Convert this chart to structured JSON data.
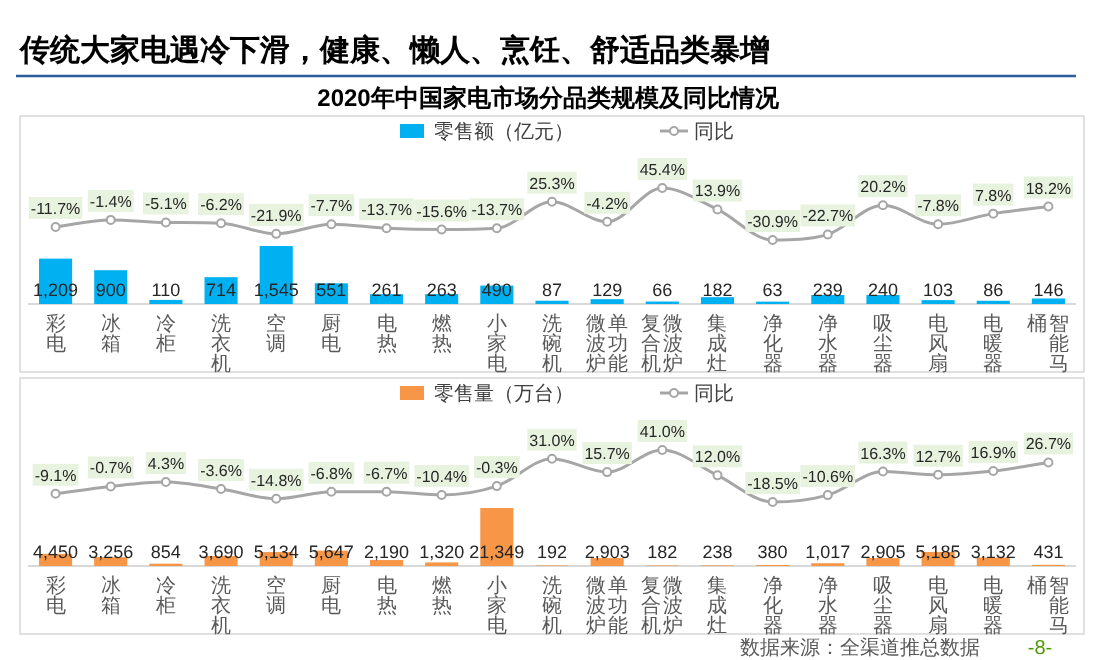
{
  "chart_data": [
    {
      "type": "other",
      "title": "传统大家电遇冷下滑，健康、懒人、烹饪、舒适品类暴增",
      "subtitle": "2020年中国家电市场分品类规模及同比情况"
    },
    {
      "type": "bar",
      "categories": [
        "彩电",
        "冰箱",
        "冷柜",
        "洗衣机",
        "空调",
        "厨电",
        "电热",
        "燃热",
        "小家电",
        "洗碗机",
        "单功能微波炉",
        "微波炉复合机",
        "集成灶",
        "净化器",
        "净水器",
        "吸尘器",
        "电风扇",
        "电暖器",
        "智能马桶"
      ],
      "series": [
        {
          "name": "零售额（亿元）",
          "color": "#00b0f0",
          "values": [
            1209,
            900,
            110,
            714,
            1545,
            551,
            261,
            263,
            490,
            87,
            129,
            66,
            182,
            63,
            239,
            240,
            103,
            86,
            146
          ],
          "value_labels": [
            "1,209",
            "900",
            "110",
            "714",
            "1,545",
            "551",
            "261",
            "263",
            "490",
            "87",
            "129",
            "66",
            "182",
            "63",
            "239",
            "240",
            "103",
            "86",
            "146"
          ]
        }
      ],
      "legend": "top"
    },
    {
      "type": "line",
      "categories": [
        null,
        null,
        null,
        null,
        null,
        null,
        null,
        null,
        null,
        null,
        null,
        null,
        null,
        null,
        null,
        null,
        null,
        null,
        null
      ],
      "series": [
        {
          "name": "同比",
          "color": "#a6a6a6",
          "values": [
            -11.7,
            -1.4,
            -5.1,
            -6.2,
            -21.9,
            -7.7,
            -13.7,
            -15.6,
            -13.7,
            25.3,
            -4.2,
            45.4,
            13.9,
            -30.9,
            -22.7,
            20.2,
            -7.8,
            7.8,
            18.2
          ],
          "value_labels": [
            "-11.7%",
            "-1.4%",
            "-5.1%",
            "-6.2%",
            "-21.9%",
            "-7.7%",
            "-13.7%",
            "-15.6%",
            "-13.7%",
            "25.3%",
            "-4.2%",
            "45.4%",
            "13.9%",
            "-30.9%",
            "-22.7%",
            "20.2%",
            "-7.8%",
            "7.8%",
            "18.2%"
          ]
        }
      ],
      "marker": "circle",
      "legend": "top"
    },
    {
      "type": "bar",
      "categories": [
        "彩电",
        "冰箱",
        "冷柜",
        "洗衣机",
        "空调",
        "厨电",
        "电热",
        "燃热",
        "小家电",
        "洗碗机",
        "单功能微波炉",
        "微波炉复合机",
        "集成灶",
        "净化器",
        "净水器",
        "吸尘器",
        "电风扇",
        "电暖器",
        "智能马桶"
      ],
      "series": [
        {
          "name": "零售量（万台）",
          "color": "#f79646",
          "values": [
            4450,
            3256,
            854,
            3690,
            5134,
            5647,
            2190,
            1320,
            21349,
            192,
            2903,
            182,
            238,
            380,
            1017,
            2905,
            5185,
            3132,
            431
          ],
          "value_labels": [
            "4,450",
            "3,256",
            "854",
            "3,690",
            "5,134",
            "5,647",
            "2,190",
            "1,320",
            "21,349",
            "192",
            "2,903",
            "182",
            "238",
            "380",
            "1,017",
            "2,905",
            "5,185",
            "3,132",
            "431"
          ]
        }
      ],
      "legend": "top"
    },
    {
      "type": "line",
      "categories": [
        null,
        null,
        null,
        null,
        null,
        null,
        null,
        null,
        null,
        null,
        null,
        null,
        null,
        null,
        null,
        null,
        null,
        null,
        null
      ],
      "series": [
        {
          "name": "同比",
          "color": "#a6a6a6",
          "values": [
            -9.1,
            -0.7,
            4.3,
            -3.6,
            -14.8,
            -6.8,
            -6.7,
            -10.4,
            -0.3,
            31.0,
            15.7,
            41.0,
            12.0,
            -18.5,
            -10.6,
            16.3,
            12.7,
            16.9,
            26.7
          ],
          "value_labels": [
            "-9.1%",
            "-0.7%",
            "4.3%",
            "-3.6%",
            "-14.8%",
            "-6.8%",
            "-6.7%",
            "-10.4%",
            "-0.3%",
            "31.0%",
            "15.7%",
            "41.0%",
            "12.0%",
            "-18.5%",
            "-10.6%",
            "16.3%",
            "12.7%",
            "16.9%",
            "26.7%"
          ]
        }
      ],
      "marker": "circle",
      "legend": "top",
      "annotations": [
        "数据来源：全渠道推总数据",
        "-8-"
      ]
    }
  ]
}
